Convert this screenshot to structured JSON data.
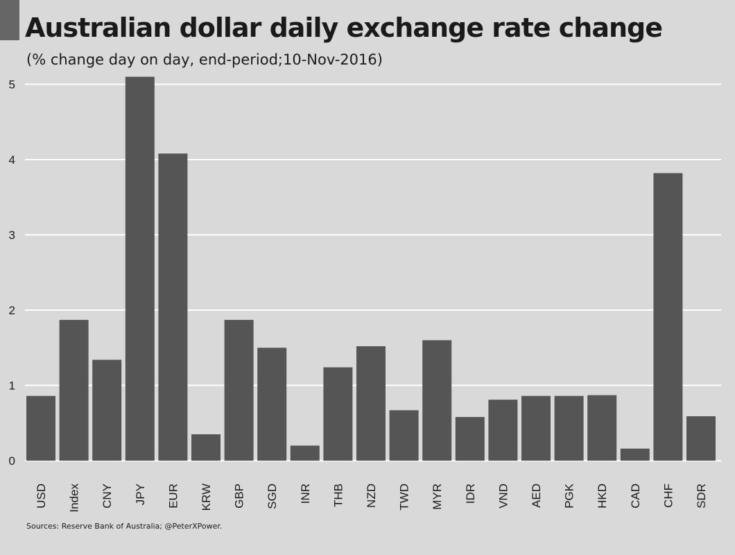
{
  "header": {
    "title": "Australian dollar daily exchange rate change",
    "subtitle": "(% change day on day, end-period;10-Nov-2016)"
  },
  "footer": {
    "source": "Sources: Reserve Bank of Australia;  @PeterXPower."
  },
  "colors": {
    "background": "#d9d9d9",
    "bar": "#555555",
    "grid": "#ffffff",
    "corner_tab": "#666666"
  },
  "chart_data": {
    "type": "bar",
    "title": "Australian dollar daily exchange rate change",
    "subtitle": "(% change day on day, end-period;10-Nov-2016)",
    "xlabel": "",
    "ylabel": "",
    "categories": [
      "USD",
      "Index",
      "CNY",
      "JPY",
      "EUR",
      "KRW",
      "GBP",
      "SGD",
      "INR",
      "THB",
      "NZD",
      "TWD",
      "MYR",
      "IDR",
      "VND",
      "AED",
      "PGK",
      "HKD",
      "CAD",
      "CHF",
      "SDR"
    ],
    "values": [
      0.86,
      1.87,
      1.34,
      5.1,
      4.08,
      0.35,
      1.87,
      1.5,
      0.2,
      1.24,
      1.52,
      0.67,
      1.6,
      0.58,
      0.81,
      0.86,
      0.86,
      0.87,
      0.16,
      3.82,
      0.59
    ],
    "yticks": [
      0,
      1,
      2,
      3,
      4,
      5
    ],
    "ylim": [
      0,
      5.1
    ],
    "grid": true,
    "legend": "none"
  }
}
